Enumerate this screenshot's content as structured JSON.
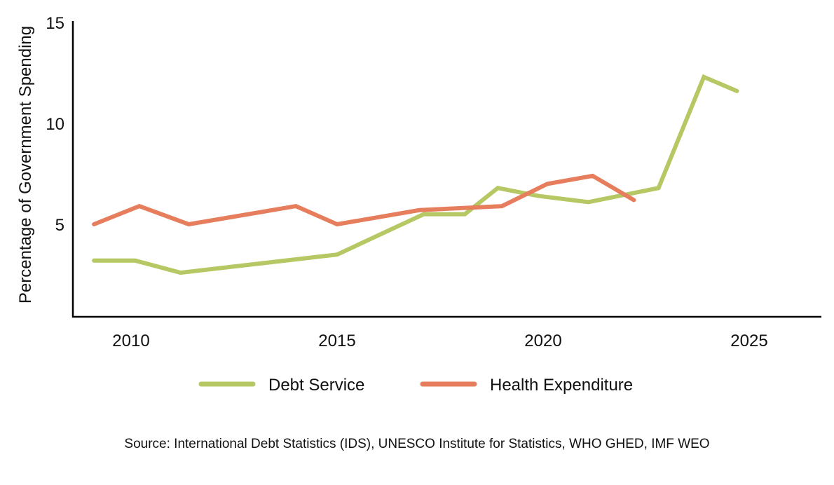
{
  "chart_data": {
    "type": "line",
    "title": "",
    "xlabel": "",
    "ylabel": "Percentage of Government Spending",
    "xlim": [
      2009,
      2026.8
    ],
    "ylim": [
      0.4,
      15
    ],
    "xticks": [
      2010,
      2015,
      2020,
      2025
    ],
    "yticks": [
      5,
      10,
      15
    ],
    "grid": false,
    "legend_position": "bottom",
    "series": [
      {
        "name": "Debt Service",
        "color": "#b5c863",
        "x": [
          2009.1,
          2010.1,
          2011.2,
          2015.0,
          2017.1,
          2018.1,
          2018.9,
          2019.9,
          2021.1,
          2022.8,
          2023.9,
          2024.7
        ],
        "y": [
          3.2,
          3.2,
          2.6,
          3.5,
          5.5,
          5.5,
          6.8,
          6.4,
          6.1,
          6.8,
          12.3,
          11.6
        ]
      },
      {
        "name": "Health Expenditure",
        "color": "#e67e5d",
        "x": [
          2009.1,
          2010.2,
          2011.4,
          2014.0,
          2015.0,
          2017.0,
          2019.0,
          2020.1,
          2021.2,
          2022.2
        ],
        "y": [
          5.0,
          5.9,
          5.0,
          5.9,
          5.0,
          5.7,
          5.9,
          7.0,
          7.4,
          6.2
        ]
      }
    ],
    "source": "Source: International Debt Statistics (IDS), UNESCO Institute for Statistics, WHO GHED, IMF WEO"
  }
}
